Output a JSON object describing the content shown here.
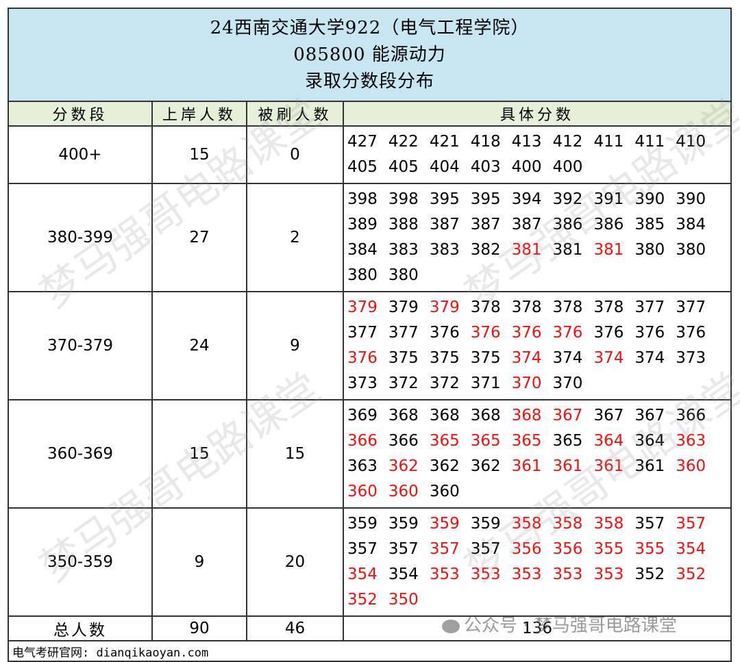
{
  "title": {
    "line1": "24西南交通大学922（电气工程学院）",
    "line2": "085800 能源动力",
    "line3": "录取分数段分布"
  },
  "headers": {
    "range": "分数段",
    "admitted": "上岸人数",
    "rejected": "被刷人数",
    "scores": "具体分数"
  },
  "colors": {
    "admitted_score": "#000000",
    "rejected_score": "#ee1111",
    "title_bg": "#c8e6f2",
    "header_bg": "#e6f0d8"
  },
  "rows": [
    {
      "range": "400+",
      "admitted": "15",
      "rejected": "0",
      "lines": [
        [
          [
            "427",
            0
          ],
          [
            "422",
            0
          ],
          [
            "421",
            0
          ],
          [
            "418",
            0
          ],
          [
            "413",
            0
          ],
          [
            "412",
            0
          ],
          [
            "411",
            0
          ],
          [
            "411",
            0
          ],
          [
            "410",
            0
          ]
        ],
        [
          [
            "405",
            0
          ],
          [
            "405",
            0
          ],
          [
            "404",
            0
          ],
          [
            "403",
            0
          ],
          [
            "400",
            0
          ],
          [
            "400",
            0
          ]
        ]
      ]
    },
    {
      "range": "380-399",
      "admitted": "27",
      "rejected": "2",
      "lines": [
        [
          [
            "398",
            0
          ],
          [
            "398",
            0
          ],
          [
            "395",
            0
          ],
          [
            "395",
            0
          ],
          [
            "394",
            0
          ],
          [
            "392",
            0
          ],
          [
            "391",
            0
          ],
          [
            "390",
            0
          ],
          [
            "390",
            0
          ]
        ],
        [
          [
            "389",
            0
          ],
          [
            "388",
            0
          ],
          [
            "387",
            0
          ],
          [
            "387",
            0
          ],
          [
            "387",
            0
          ],
          [
            "386",
            0
          ],
          [
            "386",
            0
          ],
          [
            "385",
            0
          ],
          [
            "384",
            0
          ]
        ],
        [
          [
            "384",
            0
          ],
          [
            "383",
            0
          ],
          [
            "383",
            0
          ],
          [
            "382",
            0
          ],
          [
            "381",
            1
          ],
          [
            "381",
            0
          ],
          [
            "381",
            1
          ],
          [
            "380",
            0
          ],
          [
            "380",
            0
          ]
        ],
        [
          [
            "380",
            0
          ],
          [
            "380",
            0
          ]
        ]
      ]
    },
    {
      "range": "370-379",
      "admitted": "24",
      "rejected": "9",
      "lines": [
        [
          [
            "379",
            1
          ],
          [
            "379",
            0
          ],
          [
            "379",
            1
          ],
          [
            "378",
            0
          ],
          [
            "378",
            0
          ],
          [
            "378",
            0
          ],
          [
            "378",
            0
          ],
          [
            "377",
            0
          ],
          [
            "377",
            0
          ]
        ],
        [
          [
            "377",
            0
          ],
          [
            "377",
            0
          ],
          [
            "376",
            0
          ],
          [
            "376",
            1
          ],
          [
            "376",
            1
          ],
          [
            "376",
            1
          ],
          [
            "376",
            0
          ],
          [
            "376",
            0
          ],
          [
            "376",
            0
          ]
        ],
        [
          [
            "376",
            1
          ],
          [
            "375",
            0
          ],
          [
            "375",
            0
          ],
          [
            "375",
            0
          ],
          [
            "374",
            1
          ],
          [
            "374",
            0
          ],
          [
            "374",
            1
          ],
          [
            "374",
            0
          ],
          [
            "373",
            0
          ]
        ],
        [
          [
            "373",
            0
          ],
          [
            "372",
            0
          ],
          [
            "372",
            0
          ],
          [
            "371",
            0
          ],
          [
            "370",
            1
          ],
          [
            "370",
            0
          ]
        ]
      ]
    },
    {
      "range": "360-369",
      "admitted": "15",
      "rejected": "15",
      "lines": [
        [
          [
            "369",
            0
          ],
          [
            "368",
            0
          ],
          [
            "368",
            0
          ],
          [
            "368",
            0
          ],
          [
            "368",
            1
          ],
          [
            "367",
            1
          ],
          [
            "367",
            0
          ],
          [
            "367",
            0
          ],
          [
            "366",
            0
          ]
        ],
        [
          [
            "366",
            1
          ],
          [
            "366",
            0
          ],
          [
            "365",
            1
          ],
          [
            "365",
            1
          ],
          [
            "365",
            1
          ],
          [
            "365",
            0
          ],
          [
            "364",
            1
          ],
          [
            "364",
            0
          ],
          [
            "363",
            1
          ]
        ],
        [
          [
            "363",
            0
          ],
          [
            "362",
            1
          ],
          [
            "362",
            0
          ],
          [
            "362",
            0
          ],
          [
            "361",
            1
          ],
          [
            "361",
            1
          ],
          [
            "361",
            1
          ],
          [
            "361",
            0
          ],
          [
            "360",
            1
          ]
        ],
        [
          [
            "360",
            1
          ],
          [
            "360",
            1
          ],
          [
            "360",
            0
          ]
        ]
      ]
    },
    {
      "range": "350-359",
      "admitted": "9",
      "rejected": "20",
      "lines": [
        [
          [
            "359",
            0
          ],
          [
            "359",
            0
          ],
          [
            "359",
            1
          ],
          [
            "359",
            0
          ],
          [
            "358",
            1
          ],
          [
            "358",
            1
          ],
          [
            "358",
            1
          ],
          [
            "357",
            0
          ],
          [
            "357",
            1
          ]
        ],
        [
          [
            "357",
            0
          ],
          [
            "357",
            0
          ],
          [
            "357",
            1
          ],
          [
            "357",
            0
          ],
          [
            "356",
            1
          ],
          [
            "356",
            1
          ],
          [
            "355",
            1
          ],
          [
            "355",
            1
          ],
          [
            "354",
            1
          ]
        ],
        [
          [
            "354",
            1
          ],
          [
            "354",
            0
          ],
          [
            "353",
            1
          ],
          [
            "353",
            1
          ],
          [
            "353",
            1
          ],
          [
            "353",
            1
          ],
          [
            "353",
            1
          ],
          [
            "352",
            0
          ],
          [
            "352",
            1
          ]
        ],
        [
          [
            "352",
            1
          ],
          [
            "350",
            1
          ]
        ]
      ]
    }
  ],
  "total": {
    "label": "总人数",
    "admitted": "90",
    "rejected": "46",
    "all": "136"
  },
  "footer": "电气考研官网: dianqikaoyan.com",
  "watermark": {
    "text": "梦马强哥电路课堂",
    "wechat": "公众号 · 梦马强哥电路课堂"
  }
}
